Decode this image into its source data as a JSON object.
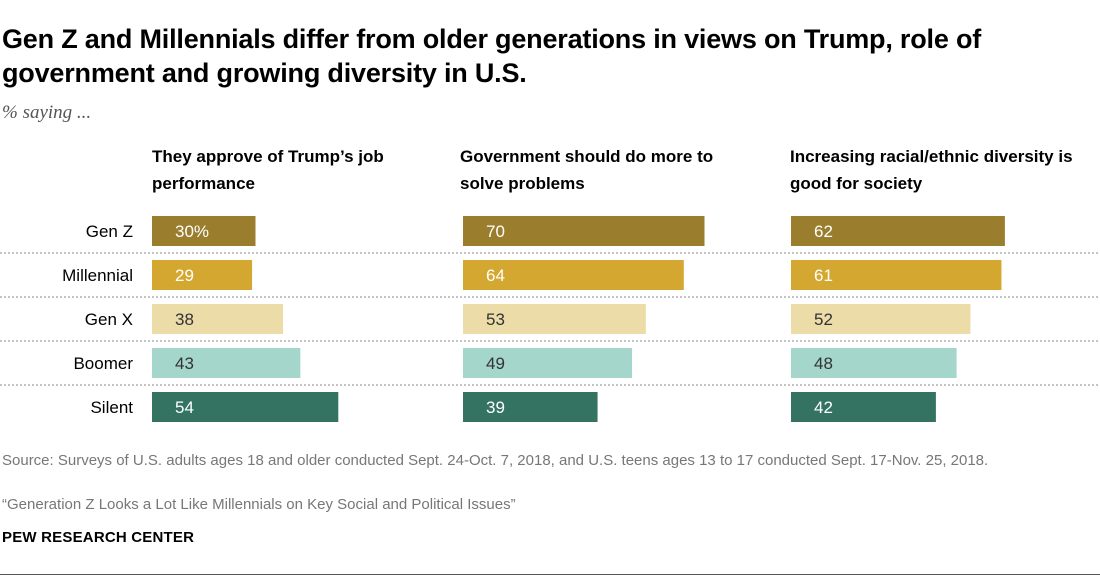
{
  "title": "Gen Z and Millennials differ from older generations in views on Trump, role of government and growing diversity in U.S.",
  "subtitle": "% saying ...",
  "source": "Source: Surveys of U.S. adults ages 18 and older conducted Sept. 24-Oct. 7, 2018, and U.S. teens ages 13 to 17 conducted Sept. 17-Nov. 25, 2018.",
  "report": "“Generation Z Looks a Lot Like Millennials on Key Social and Political Issues”",
  "org": "PEW RESEARCH CENTER",
  "colors": {
    "Gen Z": "#9a7d2d",
    "Millennial": "#d4a830",
    "Gen X": "#ecdda8",
    "Boomer": "#a4d6cc",
    "Silent": "#347362"
  },
  "chart_data": {
    "type": "bar",
    "orientation": "horizontal",
    "categories": [
      "Gen Z",
      "Millennial",
      "Gen X",
      "Boomer",
      "Silent"
    ],
    "panels": [
      {
        "title": "They approve of Trump’s job performance",
        "values": [
          30,
          29,
          38,
          43,
          54
        ],
        "labels": [
          "30%",
          "29",
          "38",
          "43",
          "54"
        ]
      },
      {
        "title": "Government should do more to solve problems",
        "values": [
          70,
          64,
          53,
          49,
          39
        ],
        "labels": [
          "70",
          "64",
          "53",
          "49",
          "39"
        ]
      },
      {
        "title": "Increasing racial/ethnic diversity is good for society",
        "values": [
          62,
          61,
          52,
          48,
          42
        ],
        "labels": [
          "62",
          "61",
          "52",
          "48",
          "42"
        ]
      }
    ],
    "label_color_light": "#ffffff",
    "label_color_dark": "#333333"
  }
}
